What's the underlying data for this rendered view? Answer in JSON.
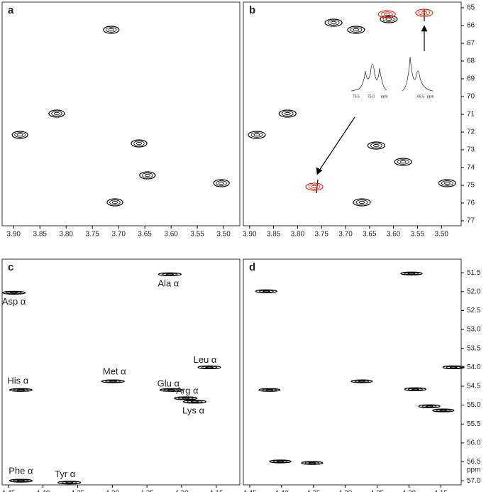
{
  "chart_data": [
    {
      "type": "contour",
      "panel": "a",
      "xlim": [
        3.922,
        3.469
      ],
      "ylim": [
        64.68,
        77.28
      ],
      "xticks": [
        {
          "value": 3.9,
          "label": "3.90"
        },
        3.85,
        {
          "value": 3.8,
          "label": "3.80"
        },
        3.75,
        {
          "value": 3.7,
          "label": "3.70"
        },
        3.65,
        {
          "value": 3.6,
          "label": "3.60"
        },
        3.55,
        {
          "value": 3.5,
          "label": "3.50"
        }
      ],
      "peaks": [
        {
          "color": "#000000",
          "x": [
            3.888,
            3.818,
            3.714,
            3.707,
            3.504,
            3.661,
            3.645
          ],
          "y": [
            72.16,
            70.96,
            66.24,
            75.96,
            74.88,
            72.64,
            74.44
          ]
        }
      ]
    },
    {
      "type": "contour",
      "panel": "b",
      "xlim": [
        3.913,
        3.459
      ],
      "ylim": [
        64.68,
        77.28
      ],
      "xticks": [
        {
          "value": 3.9,
          "label": "3.90"
        },
        3.85,
        {
          "value": 3.8,
          "label": "3.80"
        },
        3.75,
        {
          "value": 3.7,
          "label": "3.70"
        },
        3.65,
        {
          "value": 3.6,
          "label": "3.60"
        },
        3.55,
        {
          "value": 3.5,
          "label": "3.50"
        }
      ],
      "yticks": [
        65,
        66,
        67,
        68,
        69,
        70,
        71,
        72,
        73,
        74,
        75,
        76,
        77
      ],
      "peaks": [
        {
          "color": "#000000",
          "x": [
            3.885,
            3.821,
            3.725,
            3.678,
            3.61,
            3.666,
            3.636,
            3.58,
            3.488
          ],
          "y": [
            72.16,
            70.96,
            65.84,
            66.24,
            65.64,
            75.96,
            72.76,
            73.68,
            74.88
          ]
        },
        {
          "color": "#d9301f",
          "x": [
            3.614,
            3.536,
            3.765
          ],
          "y": [
            65.36,
            65.28,
            75.08
          ]
        }
      ],
      "inset_labels": [
        "75.5",
        "75.0",
        "ppm",
        "65.5",
        "ppm"
      ]
    },
    {
      "type": "contour",
      "panel": "c",
      "xlim": [
        4.459,
        4.116
      ],
      "ylim": [
        51.14,
        57.11
      ],
      "xticks": [
        4.45,
        {
          "value": 4.4,
          "label": "4.40"
        },
        4.35,
        {
          "value": 4.3,
          "label": "4.30"
        },
        4.25,
        {
          "value": 4.2,
          "label": "4.20"
        },
        4.15
      ],
      "peaks": [
        {
          "color": "#000000",
          "x": [
            4.442,
            4.217,
            4.432,
            4.299,
            4.16,
            4.215,
            4.194,
            4.181,
            4.432,
            4.362
          ],
          "y": [
            52.03,
            51.54,
            54.6,
            54.37,
            54.0,
            54.6,
            54.82,
            54.91,
            57.0,
            57.05
          ],
          "labels": [
            "Asp α",
            "Ala α",
            "His α",
            "Met α",
            "Leu α",
            "Glu α",
            "Arg α",
            "Lys α",
            "Phe α",
            "Tyr α"
          ]
        }
      ]
    },
    {
      "type": "contour",
      "panel": "d",
      "xlim": [
        4.46,
        4.118
      ],
      "ylim": [
        51.14,
        57.11
      ],
      "xticks": [
        4.45,
        {
          "value": 4.4,
          "label": "4.40"
        },
        4.35,
        {
          "value": 4.3,
          "label": "4.30"
        },
        4.25,
        {
          "value": 4.2,
          "label": "4.20"
        },
        4.15
      ],
      "yticks": [
        51.5,
        {
          "value": 52,
          "label": "52.0"
        },
        52.5,
        {
          "value": 53,
          "label": "53.0"
        },
        53.5,
        {
          "value": 54,
          "label": "54.0"
        },
        54.5,
        {
          "value": 55,
          "label": "55.0"
        },
        55.5,
        {
          "value": 56,
          "label": "56.0"
        },
        56.5,
        {
          "value": 57,
          "label": "57.0"
        }
      ],
      "ylabel": "ppm",
      "peaks": [
        {
          "color": "#000000",
          "x": [
            4.424,
            4.196,
            4.419,
            4.274,
            4.13,
            4.19,
            4.168,
            4.146,
            4.402,
            4.352
          ],
          "y": [
            51.99,
            51.52,
            54.6,
            54.37,
            54.0,
            54.58,
            55.03,
            55.14,
            56.49,
            56.53
          ]
        }
      ]
    }
  ]
}
